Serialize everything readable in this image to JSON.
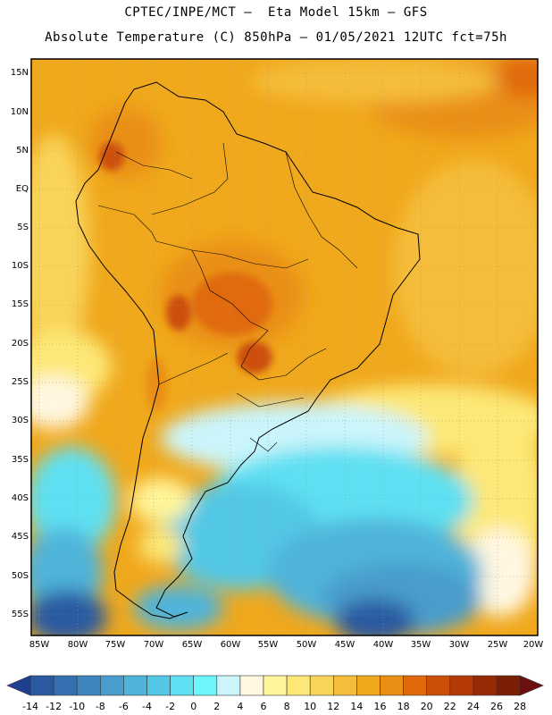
{
  "header": {
    "title_line1": "CPTEC/INPE/MCT –  Eta Model 15km – GFS",
    "title_line2": "Absolute Temperature (C) 850hPa – 01/05/2021 12UTC fct=75h"
  },
  "axes": {
    "lat_labels": [
      "15N",
      "10N",
      "5N",
      "EQ",
      "5S",
      "10S",
      "15S",
      "20S",
      "25S",
      "30S",
      "35S",
      "40S",
      "45S",
      "50S",
      "55S"
    ],
    "lon_labels": [
      "85W",
      "80W",
      "75W",
      "70W",
      "65W",
      "60W",
      "55W",
      "50W",
      "45W",
      "40W",
      "35W",
      "30W",
      "25W",
      "20W"
    ]
  },
  "colorbar": {
    "labels": [
      "-14",
      "-12",
      "-10",
      "-8",
      "-6",
      "-4",
      "-2",
      "0",
      "2",
      "4",
      "6",
      "8",
      "10",
      "12",
      "14",
      "16",
      "18",
      "20",
      "22",
      "24",
      "26",
      "28"
    ],
    "colors": [
      "#1f3f8f",
      "#2c5aa0",
      "#3570b0",
      "#3f86be",
      "#4a9ccc",
      "#4fb4da",
      "#52c8e6",
      "#5ee0f2",
      "#6cf6fc",
      "#cbf5fb",
      "#fff7e0",
      "#fff59a",
      "#fde877",
      "#f9d45a",
      "#f5bd3a",
      "#f0a81c",
      "#ea8f14",
      "#e06a0b",
      "#cc4f08",
      "#b33a06",
      "#962a06",
      "#7a1f05",
      "#6b0f0f"
    ]
  }
}
